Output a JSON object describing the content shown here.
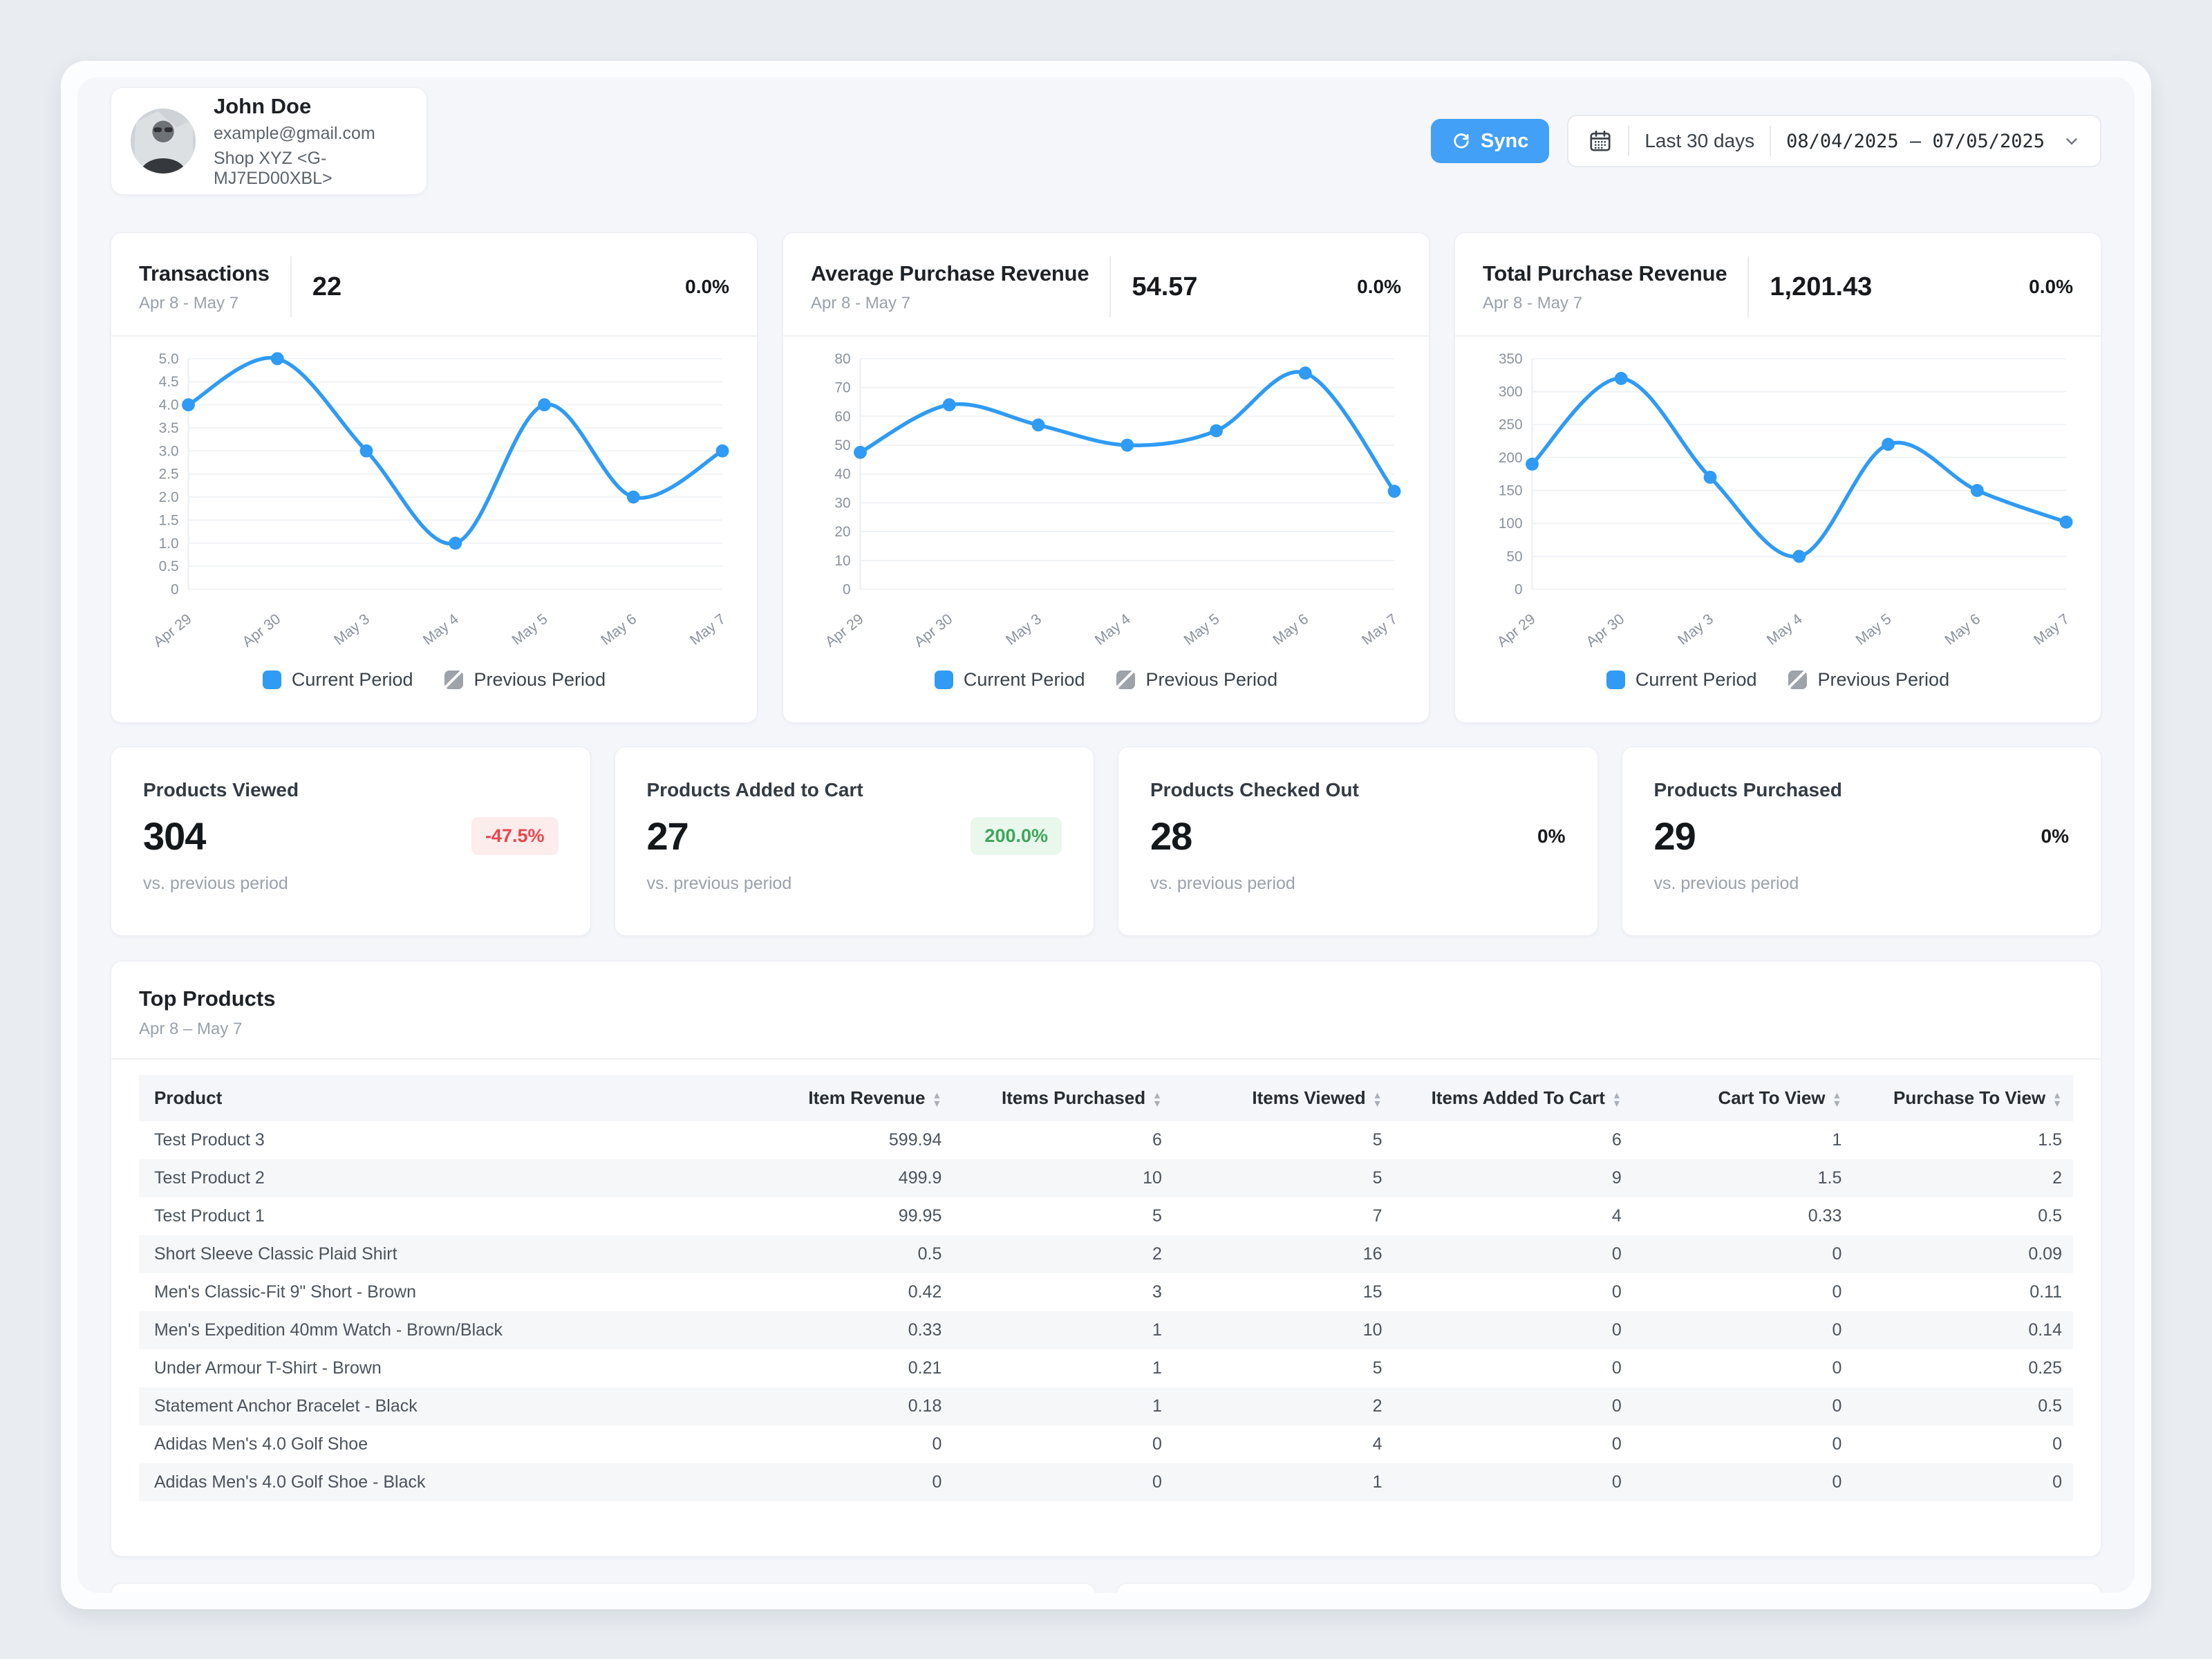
{
  "profile": {
    "name": "John Doe",
    "email": "example@gmail.com",
    "shop": "Shop XYZ <G-MJ7ED00XBL>"
  },
  "toolbar": {
    "sync_label": "Sync",
    "range_label": "Last 30 days",
    "date_range": "08/04/2025 – 07/05/2025"
  },
  "colors": {
    "accent": "#2f9bf4",
    "grid": "#f0f2f5",
    "axis": "#eceef2",
    "tick_text": "#8b929c",
    "negative": "#e5484d",
    "positive": "#3fa65b"
  },
  "legend": {
    "current": "Current Period",
    "previous": "Previous Period"
  },
  "icons": {
    "sort_asc": "▲",
    "sort_desc": "▼"
  },
  "charts": [
    {
      "title": "Transactions",
      "subtitle": "Apr 8 - May 7",
      "value": "22",
      "change": "0.0%",
      "chart_data": {
        "type": "line",
        "x": [
          "Apr 29",
          "Apr 30",
          "May 3",
          "May 4",
          "May 5",
          "May 6",
          "May 7"
        ],
        "series": [
          {
            "name": "Current Period",
            "values": [
              4,
              5,
              3,
              1,
              4,
              2,
              3
            ]
          },
          {
            "name": "Previous Period",
            "values": []
          }
        ],
        "ylim": [
          0,
          5
        ],
        "yticks": [
          0,
          0.5,
          1,
          1.5,
          2,
          2.5,
          3,
          3.5,
          4,
          4.5,
          5
        ],
        "ytick_labels": [
          "0",
          "0.5",
          "1.0",
          "1.5",
          "2.0",
          "2.5",
          "3.0",
          "3.5",
          "4.0",
          "4.5",
          "5.0"
        ],
        "grid": true,
        "legend_position": "bottom"
      }
    },
    {
      "title": "Average Purchase Revenue",
      "subtitle": "Apr 8 - May 7",
      "value": "54.57",
      "change": "0.0%",
      "chart_data": {
        "type": "line",
        "x": [
          "Apr 29",
          "Apr 30",
          "May 3",
          "May 4",
          "May 5",
          "May 6",
          "May 7"
        ],
        "series": [
          {
            "name": "Current Period",
            "values": [
              47.5,
              64,
              57,
              50,
              55,
              75,
              34
            ]
          },
          {
            "name": "Previous Period",
            "values": []
          }
        ],
        "ylim": [
          0,
          80
        ],
        "yticks": [
          0,
          10,
          20,
          30,
          40,
          50,
          60,
          70,
          80
        ],
        "ytick_labels": [
          "0",
          "10",
          "20",
          "30",
          "40",
          "50",
          "60",
          "70",
          "80"
        ],
        "grid": true,
        "legend_position": "bottom"
      }
    },
    {
      "title": "Total Purchase Revenue",
      "subtitle": "Apr 8 - May 7",
      "value": "1,201.43",
      "change": "0.0%",
      "chart_data": {
        "type": "line",
        "x": [
          "Apr 29",
          "Apr 30",
          "May 3",
          "May 4",
          "May 5",
          "May 6",
          "May 7"
        ],
        "series": [
          {
            "name": "Current Period",
            "values": [
              190,
              320,
              170,
              50,
              220,
              150,
              102
            ]
          },
          {
            "name": "Previous Period",
            "values": []
          }
        ],
        "ylim": [
          0,
          350
        ],
        "yticks": [
          0,
          50,
          100,
          150,
          200,
          250,
          300,
          350
        ],
        "ytick_labels": [
          "0",
          "50",
          "100",
          "150",
          "200",
          "250",
          "300",
          "350"
        ],
        "grid": true,
        "legend_position": "bottom"
      }
    }
  ],
  "stats": [
    {
      "title": "Products Viewed",
      "value": "304",
      "change": "-47.5%",
      "change_type": "negative",
      "note": "vs. previous period"
    },
    {
      "title": "Products Added to Cart",
      "value": "27",
      "change": "200.0%",
      "change_type": "positive",
      "note": "vs. previous period"
    },
    {
      "title": "Products Checked Out",
      "value": "28",
      "change": "0%",
      "change_type": "neutral",
      "note": "vs. previous period"
    },
    {
      "title": "Products Purchased",
      "value": "29",
      "change": "0%",
      "change_type": "neutral",
      "note": "vs. previous period"
    }
  ],
  "top_products": {
    "title": "Top Products",
    "subtitle": "Apr 8 – May 7",
    "columns": [
      "Product",
      "Item Revenue",
      "Items Purchased",
      "Items Viewed",
      "Items Added To Cart",
      "Cart To View",
      "Purchase To View"
    ],
    "rows": [
      [
        "Test Product 3",
        "599.94",
        "6",
        "5",
        "6",
        "1",
        "1.5"
      ],
      [
        "Test Product 2",
        "499.9",
        "10",
        "5",
        "9",
        "1.5",
        "2"
      ],
      [
        "Test Product 1",
        "99.95",
        "5",
        "7",
        "4",
        "0.33",
        "0.5"
      ],
      [
        "Short Sleeve Classic Plaid Shirt",
        "0.5",
        "2",
        "16",
        "0",
        "0",
        "0.09"
      ],
      [
        "Men's Classic-Fit 9\" Short - Brown",
        "0.42",
        "3",
        "15",
        "0",
        "0",
        "0.11"
      ],
      [
        "Men's Expedition 40mm Watch - Brown/Black",
        "0.33",
        "1",
        "10",
        "0",
        "0",
        "0.14"
      ],
      [
        "Under Armour T-Shirt - Brown",
        "0.21",
        "1",
        "5",
        "0",
        "0",
        "0.25"
      ],
      [
        "Statement Anchor Bracelet - Black",
        "0.18",
        "1",
        "2",
        "0",
        "0",
        "0.5"
      ],
      [
        "Adidas Men's 4.0 Golf Shoe",
        "0",
        "0",
        "4",
        "0",
        "0",
        "0"
      ],
      [
        "Adidas Men's 4.0 Golf Shoe - Black",
        "0",
        "0",
        "1",
        "0",
        "0",
        "0"
      ]
    ]
  }
}
